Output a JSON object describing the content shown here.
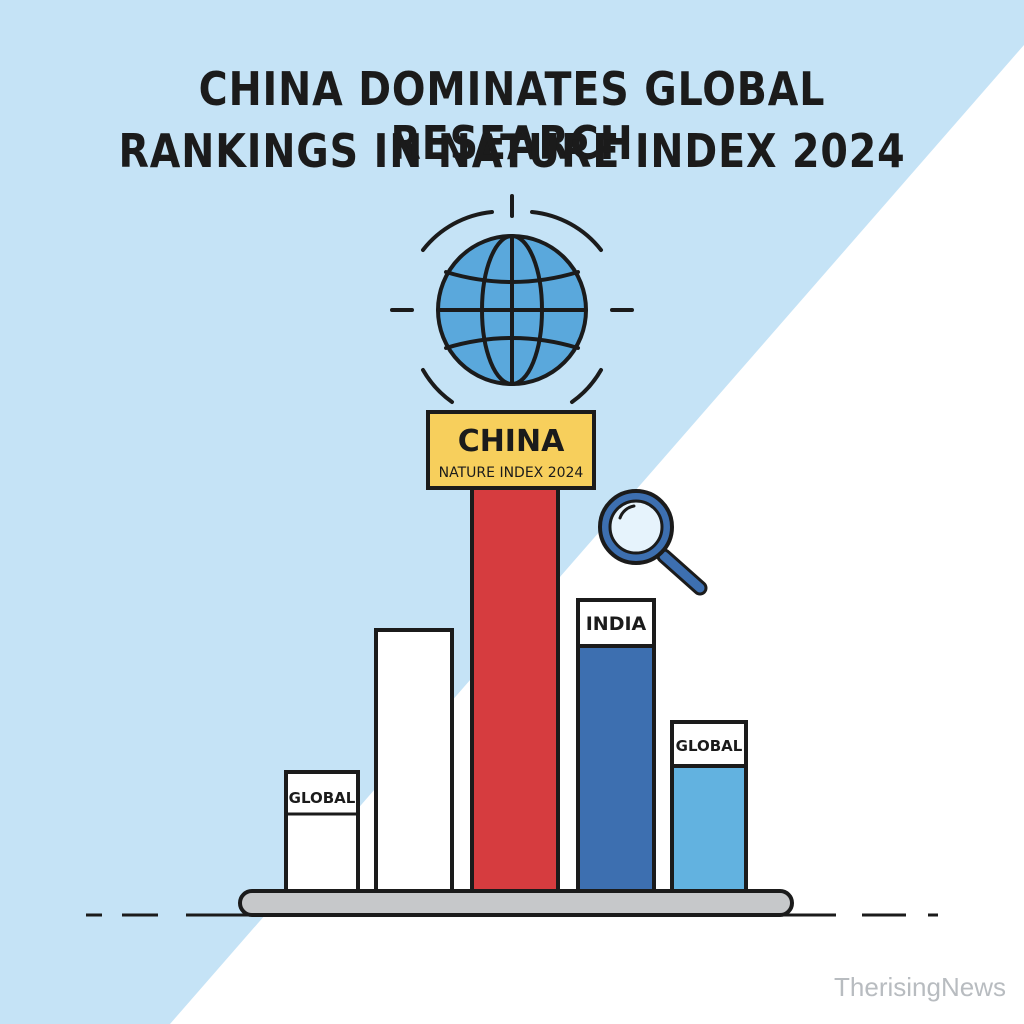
{
  "headline": {
    "line1": "CHINA DOMINATES GLOBAL RESEARCH",
    "line2": "RANKINGS IN NATURE INDEX 2024"
  },
  "icons": [
    "globe-icon",
    "magnifier-icon"
  ],
  "banner": {
    "country": "CHINA",
    "subtitle": "NATURE INDEX 2024"
  },
  "bars": [
    {
      "name": "bar-1",
      "label": "GLOBAL",
      "color": "#ffffff"
    },
    {
      "name": "bar-2",
      "label": "",
      "color": "#ffffff"
    },
    {
      "name": "bar-3",
      "label": "",
      "color": "#d63c3f"
    },
    {
      "name": "bar-4",
      "label": "INDIA",
      "color": "#3d6fb0"
    },
    {
      "name": "bar-5",
      "label": "GLOBAL",
      "color": "#62b2e0"
    }
  ],
  "colors": {
    "sky": "#c5e3f6",
    "ink": "#1b1b1b",
    "banner": "#f7cf5c",
    "globe": "#5aa8dc",
    "base": "#c6c8ca"
  },
  "watermark": "TherisingNews"
}
